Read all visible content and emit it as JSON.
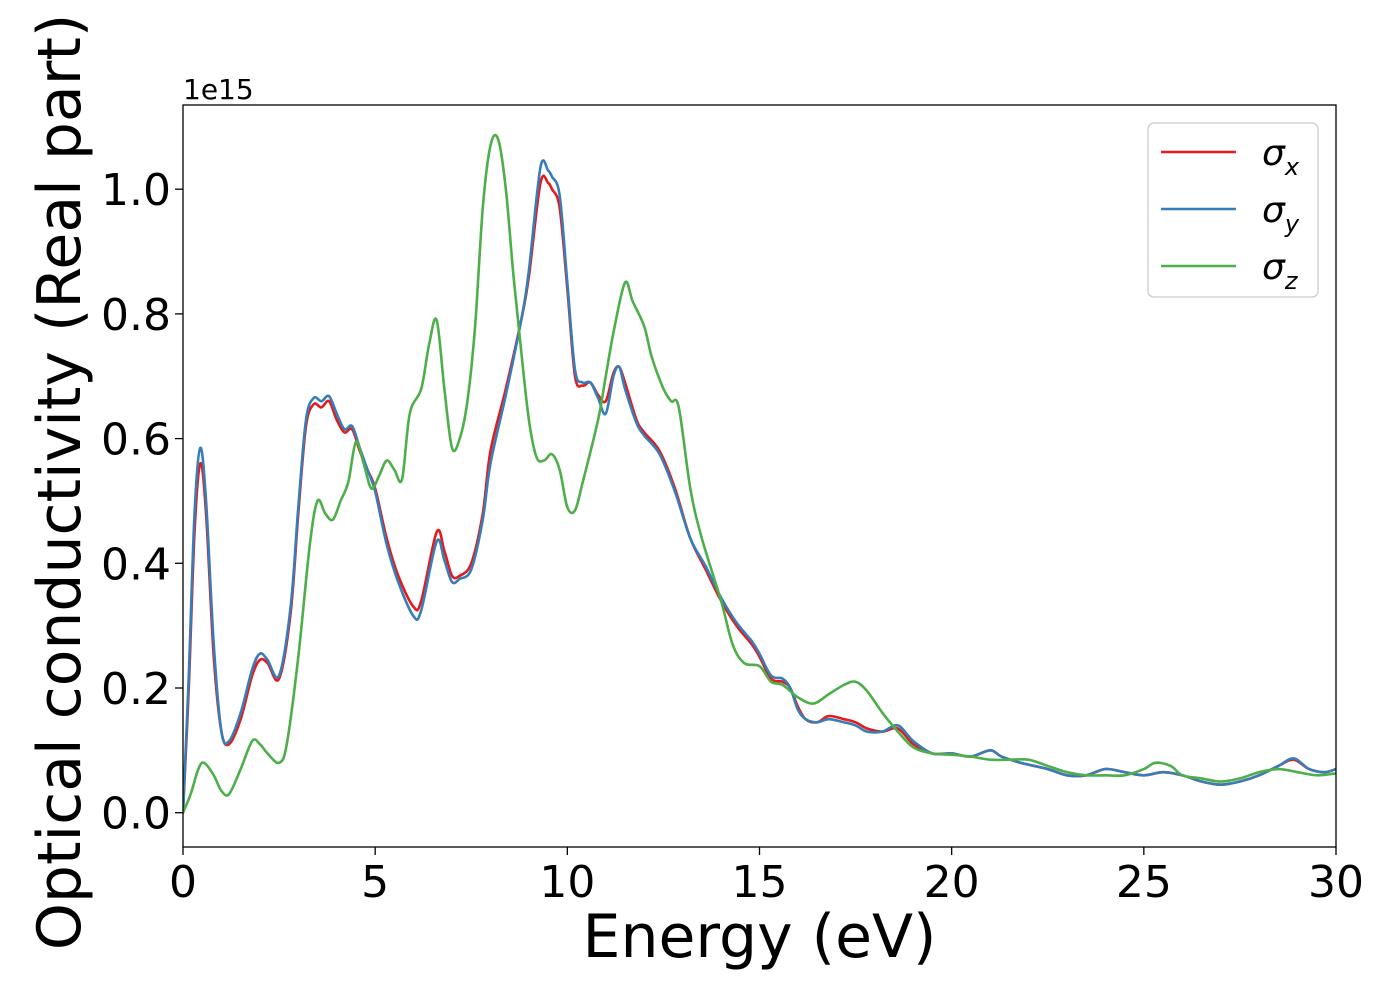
{
  "chart_data": {
    "type": "line",
    "xlabel": "Energy (eV)",
    "ylabel": "Optical conductivity (Real part)",
    "y_offset_label": "1e15",
    "xlim": [
      0,
      30
    ],
    "ylim": [
      -0.055,
      1.135
    ],
    "x_ticks": [
      0,
      5,
      10,
      15,
      20,
      25,
      30
    ],
    "x_tick_labels": [
      "0",
      "5",
      "10",
      "15",
      "20",
      "25",
      "30"
    ],
    "y_ticks": [
      0.0,
      0.2,
      0.4,
      0.6,
      0.8,
      1.0
    ],
    "y_tick_labels": [
      "0.0",
      "0.2",
      "0.4",
      "0.6",
      "0.8",
      "1.0"
    ],
    "grid": false,
    "legend_position": "top-right",
    "series": [
      {
        "name": "σx",
        "symbol": "σ",
        "subscript": "x",
        "color": "#e41a1c",
        "points": [
          [
            0,
            0.0
          ],
          [
            0.15,
            0.2
          ],
          [
            0.3,
            0.45
          ],
          [
            0.45,
            0.56
          ],
          [
            0.6,
            0.48
          ],
          [
            0.8,
            0.25
          ],
          [
            1.0,
            0.13
          ],
          [
            1.2,
            0.11
          ],
          [
            1.5,
            0.15
          ],
          [
            1.8,
            0.22
          ],
          [
            2.0,
            0.245
          ],
          [
            2.2,
            0.24
          ],
          [
            2.5,
            0.215
          ],
          [
            2.8,
            0.32
          ],
          [
            3.0,
            0.48
          ],
          [
            3.2,
            0.62
          ],
          [
            3.4,
            0.655
          ],
          [
            3.6,
            0.65
          ],
          [
            3.8,
            0.66
          ],
          [
            4.0,
            0.63
          ],
          [
            4.2,
            0.61
          ],
          [
            4.4,
            0.615
          ],
          [
            4.6,
            0.58
          ],
          [
            4.8,
            0.55
          ],
          [
            5.0,
            0.52
          ],
          [
            5.3,
            0.44
          ],
          [
            5.6,
            0.38
          ],
          [
            6.0,
            0.33
          ],
          [
            6.2,
            0.34
          ],
          [
            6.6,
            0.45
          ],
          [
            6.8,
            0.42
          ],
          [
            7.0,
            0.38
          ],
          [
            7.2,
            0.38
          ],
          [
            7.5,
            0.4
          ],
          [
            7.8,
            0.48
          ],
          [
            8.0,
            0.58
          ],
          [
            8.4,
            0.68
          ],
          [
            8.8,
            0.79
          ],
          [
            9.0,
            0.86
          ],
          [
            9.3,
            1.01
          ],
          [
            9.5,
            1.01
          ],
          [
            9.6,
            1.0
          ],
          [
            9.8,
            0.97
          ],
          [
            10.0,
            0.84
          ],
          [
            10.2,
            0.7
          ],
          [
            10.4,
            0.685
          ],
          [
            10.6,
            0.69
          ],
          [
            10.8,
            0.67
          ],
          [
            11.0,
            0.66
          ],
          [
            11.2,
            0.705
          ],
          [
            11.35,
            0.715
          ],
          [
            11.5,
            0.69
          ],
          [
            11.8,
            0.63
          ],
          [
            12.0,
            0.61
          ],
          [
            12.4,
            0.58
          ],
          [
            12.8,
            0.52
          ],
          [
            13.2,
            0.44
          ],
          [
            13.6,
            0.39
          ],
          [
            14.0,
            0.34
          ],
          [
            14.4,
            0.3
          ],
          [
            14.8,
            0.27
          ],
          [
            15.0,
            0.25
          ],
          [
            15.3,
            0.215
          ],
          [
            15.6,
            0.21
          ],
          [
            15.8,
            0.2
          ],
          [
            16.0,
            0.17
          ],
          [
            16.2,
            0.15
          ],
          [
            16.5,
            0.145
          ],
          [
            16.8,
            0.155
          ],
          [
            17.2,
            0.15
          ],
          [
            17.5,
            0.145
          ],
          [
            17.8,
            0.135
          ],
          [
            18.2,
            0.13
          ],
          [
            18.6,
            0.135
          ],
          [
            19.0,
            0.11
          ],
          [
            19.5,
            0.095
          ],
          [
            20.0,
            0.095
          ],
          [
            20.5,
            0.09
          ],
          [
            21.0,
            0.1
          ],
          [
            21.3,
            0.09
          ],
          [
            21.8,
            0.08
          ],
          [
            22.5,
            0.07
          ],
          [
            23.0,
            0.06
          ],
          [
            23.5,
            0.06
          ],
          [
            24.0,
            0.07
          ],
          [
            24.5,
            0.065
          ],
          [
            25.0,
            0.06
          ],
          [
            25.5,
            0.065
          ],
          [
            26.0,
            0.06
          ],
          [
            26.5,
            0.05
          ],
          [
            27.0,
            0.045
          ],
          [
            27.5,
            0.05
          ],
          [
            28.0,
            0.06
          ],
          [
            28.5,
            0.075
          ],
          [
            28.9,
            0.085
          ],
          [
            29.3,
            0.07
          ],
          [
            29.7,
            0.065
          ],
          [
            30.0,
            0.07
          ]
        ]
      },
      {
        "name": "σy",
        "symbol": "σ",
        "subscript": "y",
        "color": "#377eb8",
        "points": [
          [
            0,
            0.0
          ],
          [
            0.15,
            0.22
          ],
          [
            0.3,
            0.48
          ],
          [
            0.45,
            0.585
          ],
          [
            0.6,
            0.5
          ],
          [
            0.8,
            0.27
          ],
          [
            1.0,
            0.13
          ],
          [
            1.2,
            0.115
          ],
          [
            1.5,
            0.16
          ],
          [
            1.8,
            0.23
          ],
          [
            2.0,
            0.255
          ],
          [
            2.2,
            0.245
          ],
          [
            2.5,
            0.22
          ],
          [
            2.8,
            0.33
          ],
          [
            3.0,
            0.49
          ],
          [
            3.2,
            0.63
          ],
          [
            3.4,
            0.665
          ],
          [
            3.6,
            0.66
          ],
          [
            3.8,
            0.668
          ],
          [
            4.0,
            0.64
          ],
          [
            4.2,
            0.615
          ],
          [
            4.4,
            0.62
          ],
          [
            4.6,
            0.585
          ],
          [
            4.8,
            0.55
          ],
          [
            5.0,
            0.515
          ],
          [
            5.3,
            0.43
          ],
          [
            5.6,
            0.37
          ],
          [
            6.0,
            0.315
          ],
          [
            6.2,
            0.325
          ],
          [
            6.6,
            0.435
          ],
          [
            6.8,
            0.405
          ],
          [
            7.0,
            0.37
          ],
          [
            7.2,
            0.375
          ],
          [
            7.5,
            0.39
          ],
          [
            7.8,
            0.47
          ],
          [
            8.0,
            0.56
          ],
          [
            8.4,
            0.67
          ],
          [
            8.8,
            0.79
          ],
          [
            9.0,
            0.87
          ],
          [
            9.3,
            1.035
          ],
          [
            9.5,
            1.03
          ],
          [
            9.6,
            1.02
          ],
          [
            9.8,
            0.99
          ],
          [
            10.0,
            0.85
          ],
          [
            10.2,
            0.71
          ],
          [
            10.4,
            0.69
          ],
          [
            10.6,
            0.69
          ],
          [
            10.8,
            0.665
          ],
          [
            11.0,
            0.64
          ],
          [
            11.2,
            0.7
          ],
          [
            11.35,
            0.715
          ],
          [
            11.5,
            0.68
          ],
          [
            11.8,
            0.625
          ],
          [
            12.0,
            0.605
          ],
          [
            12.4,
            0.575
          ],
          [
            12.8,
            0.515
          ],
          [
            13.2,
            0.44
          ],
          [
            13.6,
            0.395
          ],
          [
            14.0,
            0.345
          ],
          [
            14.4,
            0.305
          ],
          [
            14.8,
            0.275
          ],
          [
            15.0,
            0.255
          ],
          [
            15.3,
            0.22
          ],
          [
            15.6,
            0.215
          ],
          [
            15.8,
            0.2
          ],
          [
            16.0,
            0.165
          ],
          [
            16.2,
            0.15
          ],
          [
            16.5,
            0.145
          ],
          [
            16.8,
            0.15
          ],
          [
            17.2,
            0.145
          ],
          [
            17.5,
            0.14
          ],
          [
            17.8,
            0.13
          ],
          [
            18.2,
            0.13
          ],
          [
            18.6,
            0.14
          ],
          [
            19.0,
            0.115
          ],
          [
            19.5,
            0.095
          ],
          [
            20.0,
            0.095
          ],
          [
            20.5,
            0.09
          ],
          [
            21.0,
            0.1
          ],
          [
            21.3,
            0.09
          ],
          [
            21.8,
            0.08
          ],
          [
            22.5,
            0.07
          ],
          [
            23.0,
            0.06
          ],
          [
            23.5,
            0.06
          ],
          [
            24.0,
            0.07
          ],
          [
            24.5,
            0.065
          ],
          [
            25.0,
            0.06
          ],
          [
            25.5,
            0.065
          ],
          [
            26.0,
            0.06
          ],
          [
            26.5,
            0.05
          ],
          [
            27.0,
            0.045
          ],
          [
            27.5,
            0.05
          ],
          [
            28.0,
            0.06
          ],
          [
            28.5,
            0.075
          ],
          [
            28.9,
            0.087
          ],
          [
            29.3,
            0.07
          ],
          [
            29.7,
            0.065
          ],
          [
            30.0,
            0.07
          ]
        ]
      },
      {
        "name": "σz",
        "symbol": "σ",
        "subscript": "z",
        "color": "#4daf4a",
        "points": [
          [
            0,
            0.0
          ],
          [
            0.2,
            0.03
          ],
          [
            0.4,
            0.07
          ],
          [
            0.55,
            0.08
          ],
          [
            0.8,
            0.06
          ],
          [
            1.0,
            0.035
          ],
          [
            1.2,
            0.03
          ],
          [
            1.5,
            0.07
          ],
          [
            1.8,
            0.115
          ],
          [
            2.0,
            0.11
          ],
          [
            2.2,
            0.095
          ],
          [
            2.5,
            0.08
          ],
          [
            2.7,
            0.11
          ],
          [
            3.0,
            0.25
          ],
          [
            3.3,
            0.43
          ],
          [
            3.5,
            0.5
          ],
          [
            3.7,
            0.48
          ],
          [
            3.9,
            0.47
          ],
          [
            4.1,
            0.5
          ],
          [
            4.3,
            0.53
          ],
          [
            4.5,
            0.595
          ],
          [
            4.7,
            0.56
          ],
          [
            4.9,
            0.52
          ],
          [
            5.1,
            0.54
          ],
          [
            5.3,
            0.565
          ],
          [
            5.5,
            0.55
          ],
          [
            5.7,
            0.535
          ],
          [
            5.9,
            0.64
          ],
          [
            6.2,
            0.68
          ],
          [
            6.4,
            0.75
          ],
          [
            6.6,
            0.79
          ],
          [
            6.8,
            0.68
          ],
          [
            7.0,
            0.585
          ],
          [
            7.2,
            0.6
          ],
          [
            7.4,
            0.66
          ],
          [
            7.6,
            0.78
          ],
          [
            7.8,
            0.97
          ],
          [
            8.0,
            1.07
          ],
          [
            8.2,
            1.08
          ],
          [
            8.4,
            1.0
          ],
          [
            8.6,
            0.86
          ],
          [
            8.8,
            0.74
          ],
          [
            9.0,
            0.63
          ],
          [
            9.2,
            0.57
          ],
          [
            9.4,
            0.565
          ],
          [
            9.6,
            0.575
          ],
          [
            9.8,
            0.55
          ],
          [
            10.0,
            0.49
          ],
          [
            10.2,
            0.485
          ],
          [
            10.4,
            0.53
          ],
          [
            10.8,
            0.63
          ],
          [
            11.0,
            0.7
          ],
          [
            11.2,
            0.77
          ],
          [
            11.5,
            0.85
          ],
          [
            11.7,
            0.82
          ],
          [
            12.0,
            0.78
          ],
          [
            12.2,
            0.73
          ],
          [
            12.5,
            0.68
          ],
          [
            12.7,
            0.66
          ],
          [
            12.9,
            0.65
          ],
          [
            13.2,
            0.52
          ],
          [
            13.5,
            0.44
          ],
          [
            14.0,
            0.34
          ],
          [
            14.3,
            0.27
          ],
          [
            14.6,
            0.24
          ],
          [
            15.0,
            0.235
          ],
          [
            15.3,
            0.21
          ],
          [
            15.6,
            0.205
          ],
          [
            16.0,
            0.185
          ],
          [
            16.4,
            0.175
          ],
          [
            16.8,
            0.19
          ],
          [
            17.2,
            0.205
          ],
          [
            17.5,
            0.21
          ],
          [
            17.8,
            0.195
          ],
          [
            18.2,
            0.16
          ],
          [
            18.6,
            0.13
          ],
          [
            19.0,
            0.105
          ],
          [
            19.5,
            0.095
          ],
          [
            20.0,
            0.093
          ],
          [
            20.5,
            0.09
          ],
          [
            21.0,
            0.085
          ],
          [
            21.5,
            0.085
          ],
          [
            22.0,
            0.085
          ],
          [
            22.5,
            0.075
          ],
          [
            23.0,
            0.065
          ],
          [
            23.5,
            0.06
          ],
          [
            24.0,
            0.06
          ],
          [
            24.5,
            0.06
          ],
          [
            25.0,
            0.07
          ],
          [
            25.3,
            0.08
          ],
          [
            25.7,
            0.075
          ],
          [
            26.0,
            0.06
          ],
          [
            26.5,
            0.055
          ],
          [
            27.0,
            0.05
          ],
          [
            27.5,
            0.055
          ],
          [
            28.0,
            0.065
          ],
          [
            28.5,
            0.07
          ],
          [
            29.0,
            0.065
          ],
          [
            29.5,
            0.06
          ],
          [
            30.0,
            0.063
          ]
        ]
      }
    ]
  }
}
